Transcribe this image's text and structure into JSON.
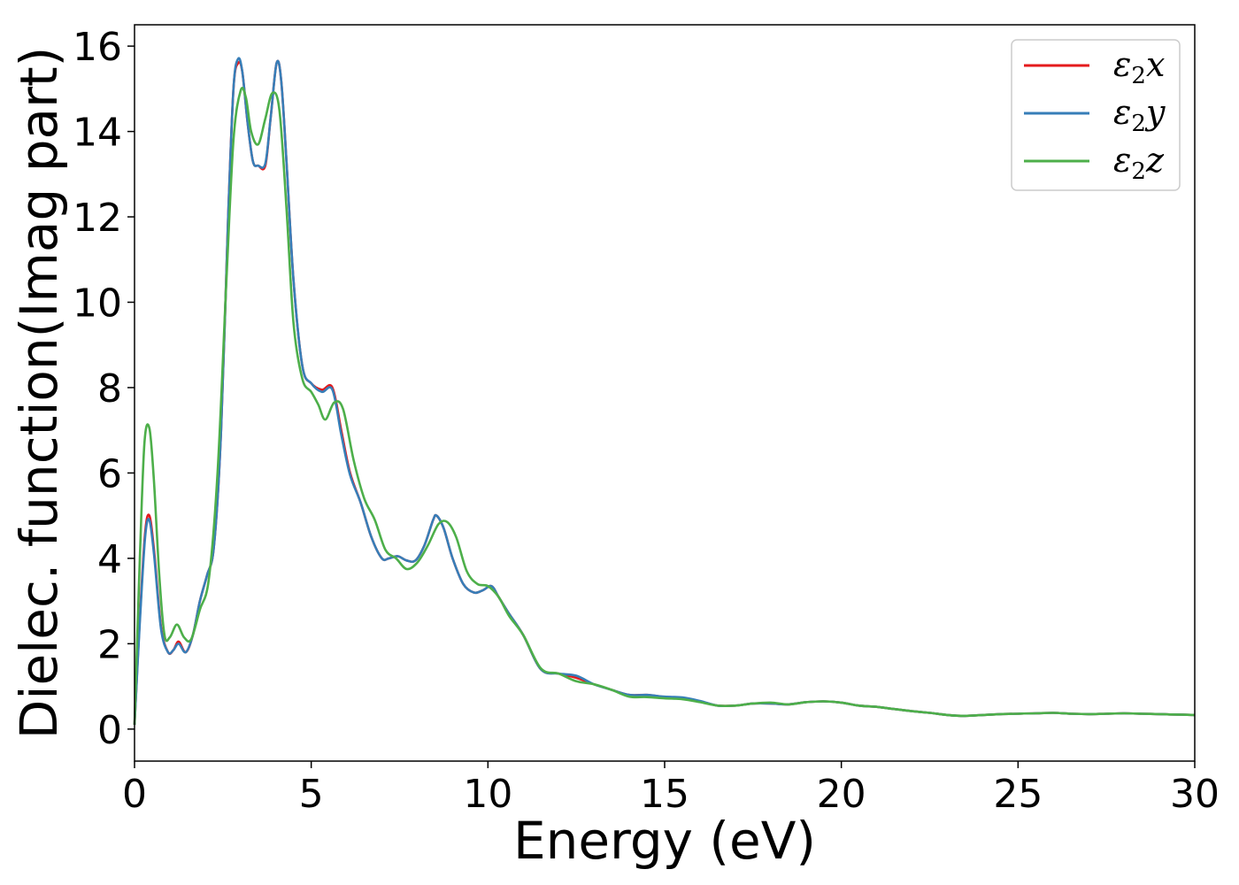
{
  "chart_data": {
    "type": "line",
    "xlabel": "Energy (eV)",
    "ylabel": "Dielec. function(Imag part)",
    "xlim": [
      0,
      30
    ],
    "ylim": [
      -0.75,
      16.5
    ],
    "xticks": [
      0,
      5,
      10,
      15,
      20,
      25,
      30
    ],
    "yticks": [
      0,
      2,
      4,
      6,
      8,
      10,
      12,
      14,
      16
    ],
    "grid": false,
    "legend_position": "top-right",
    "series": [
      {
        "name": "ε2x",
        "label_main": "ε",
        "label_sub": "2",
        "label_tail": "x",
        "color": "#e41a1c",
        "x": [
          0,
          0.15,
          0.3,
          0.42,
          0.55,
          0.75,
          0.95,
          1.1,
          1.25,
          1.45,
          1.65,
          1.85,
          2.05,
          2.25,
          2.45,
          2.65,
          2.8,
          2.93,
          3.05,
          3.2,
          3.35,
          3.5,
          3.7,
          3.85,
          4.02,
          4.15,
          4.3,
          4.5,
          4.75,
          5.0,
          5.3,
          5.6,
          5.85,
          6.1,
          6.4,
          6.7,
          7.0,
          7.2,
          7.45,
          7.7,
          7.95,
          8.2,
          8.45,
          8.55,
          8.75,
          9.0,
          9.3,
          9.6,
          9.85,
          10.1,
          10.3,
          10.6,
          11.0,
          11.5,
          12.0,
          12.5,
          13.0,
          13.5,
          14.0,
          14.5,
          15.0,
          15.5,
          16.0,
          16.5,
          17.0,
          17.5,
          18.0,
          18.5,
          19.0,
          19.5,
          20.0,
          20.5,
          21.0,
          21.5,
          22.0,
          22.5,
          23.0,
          23.5,
          24.0,
          24.5,
          25.0,
          25.5,
          26.0,
          26.5,
          27.0,
          27.5,
          28.0,
          28.5,
          29.0,
          29.5,
          30.0
        ],
        "y": [
          0.1,
          2.6,
          4.6,
          5.0,
          4.2,
          2.4,
          1.8,
          1.85,
          2.05,
          1.8,
          2.2,
          3.0,
          3.6,
          4.3,
          7.0,
          12.0,
          15.0,
          15.6,
          15.4,
          14.2,
          13.3,
          13.2,
          13.2,
          14.3,
          15.6,
          15.2,
          13.3,
          10.5,
          8.5,
          8.1,
          7.95,
          8.0,
          7.0,
          6.0,
          5.3,
          4.5,
          4.0,
          4.0,
          4.05,
          3.95,
          3.95,
          4.3,
          4.9,
          5.0,
          4.7,
          4.0,
          3.4,
          3.2,
          3.25,
          3.35,
          3.1,
          2.7,
          2.2,
          1.4,
          1.3,
          1.2,
          1.05,
          0.92,
          0.8,
          0.8,
          0.75,
          0.72,
          0.65,
          0.55,
          0.55,
          0.6,
          0.6,
          0.58,
          0.63,
          0.65,
          0.62,
          0.55,
          0.52,
          0.47,
          0.42,
          0.38,
          0.33,
          0.31,
          0.33,
          0.35,
          0.36,
          0.37,
          0.38,
          0.36,
          0.35,
          0.36,
          0.37,
          0.36,
          0.35,
          0.34,
          0.33
        ]
      },
      {
        "name": "ε2y",
        "label_main": "ε",
        "label_sub": "2",
        "label_tail": "y",
        "color": "#377eb8",
        "x": [
          0,
          0.15,
          0.3,
          0.42,
          0.55,
          0.75,
          0.95,
          1.1,
          1.25,
          1.45,
          1.65,
          1.85,
          2.05,
          2.25,
          2.45,
          2.65,
          2.8,
          2.93,
          3.05,
          3.2,
          3.35,
          3.5,
          3.7,
          3.85,
          4.02,
          4.15,
          4.3,
          4.5,
          4.75,
          5.0,
          5.3,
          5.6,
          5.85,
          6.1,
          6.4,
          6.7,
          7.0,
          7.2,
          7.45,
          7.7,
          7.95,
          8.2,
          8.45,
          8.55,
          8.75,
          9.0,
          9.3,
          9.6,
          9.85,
          10.1,
          10.3,
          10.6,
          11.0,
          11.5,
          12.0,
          12.5,
          13.0,
          13.5,
          14.0,
          14.5,
          15.0,
          15.5,
          16.0,
          16.5,
          17.0,
          17.5,
          18.0,
          18.5,
          19.0,
          19.5,
          20.0,
          20.5,
          21.0,
          21.5,
          22.0,
          22.5,
          23.0,
          23.5,
          24.0,
          24.5,
          25.0,
          25.5,
          26.0,
          26.5,
          27.0,
          27.5,
          28.0,
          28.5,
          29.0,
          29.5,
          30.0
        ],
        "y": [
          0.1,
          2.5,
          4.5,
          4.9,
          4.1,
          2.35,
          1.8,
          1.85,
          2.0,
          1.8,
          2.2,
          3.0,
          3.6,
          4.3,
          7.0,
          12.0,
          15.0,
          15.7,
          15.4,
          14.2,
          13.3,
          13.2,
          13.25,
          14.3,
          15.6,
          15.2,
          13.3,
          10.5,
          8.5,
          8.1,
          7.9,
          7.95,
          6.9,
          5.95,
          5.3,
          4.5,
          4.0,
          4.0,
          4.05,
          3.95,
          3.95,
          4.3,
          4.9,
          5.0,
          4.7,
          4.0,
          3.4,
          3.2,
          3.25,
          3.35,
          3.1,
          2.7,
          2.2,
          1.4,
          1.3,
          1.25,
          1.05,
          0.92,
          0.8,
          0.8,
          0.76,
          0.74,
          0.66,
          0.55,
          0.55,
          0.6,
          0.6,
          0.58,
          0.63,
          0.65,
          0.62,
          0.55,
          0.52,
          0.47,
          0.42,
          0.38,
          0.33,
          0.31,
          0.33,
          0.35,
          0.36,
          0.37,
          0.38,
          0.36,
          0.35,
          0.36,
          0.37,
          0.36,
          0.35,
          0.34,
          0.33
        ]
      },
      {
        "name": "ε2z",
        "label_main": "ε",
        "label_sub": "2",
        "label_tail": "z",
        "color": "#4daf4a",
        "x": [
          0,
          0.15,
          0.28,
          0.42,
          0.55,
          0.7,
          0.85,
          1.0,
          1.2,
          1.4,
          1.6,
          1.85,
          2.1,
          2.35,
          2.6,
          2.8,
          3.0,
          3.15,
          3.3,
          3.5,
          3.7,
          3.9,
          4.1,
          4.3,
          4.5,
          4.75,
          5.0,
          5.2,
          5.4,
          5.65,
          5.9,
          6.2,
          6.5,
          6.8,
          7.1,
          7.4,
          7.7,
          8.0,
          8.3,
          8.6,
          8.85,
          9.1,
          9.4,
          9.7,
          10.0,
          10.3,
          10.6,
          11.0,
          11.5,
          12.0,
          12.5,
          13.0,
          13.5,
          14.0,
          14.5,
          15.0,
          15.5,
          16.0,
          16.5,
          17.0,
          17.5,
          18.0,
          18.5,
          19.0,
          19.5,
          20.0,
          20.5,
          21.0,
          21.5,
          22.0,
          22.5,
          23.0,
          23.5,
          24.0,
          24.5,
          25.0,
          25.5,
          26.0,
          26.5,
          27.0,
          27.5,
          28.0,
          28.5,
          29.0,
          29.5,
          30.0
        ],
        "y": [
          0.1,
          4.0,
          6.7,
          7.05,
          5.8,
          3.6,
          2.2,
          2.15,
          2.45,
          2.15,
          2.1,
          2.8,
          3.5,
          6.0,
          10.5,
          13.8,
          14.95,
          14.8,
          14.0,
          13.7,
          14.3,
          14.9,
          14.5,
          12.2,
          9.5,
          8.2,
          7.9,
          7.6,
          7.25,
          7.65,
          7.5,
          6.3,
          5.4,
          4.9,
          4.2,
          4.0,
          3.75,
          3.9,
          4.3,
          4.8,
          4.85,
          4.5,
          3.7,
          3.4,
          3.35,
          3.1,
          2.65,
          2.2,
          1.42,
          1.3,
          1.12,
          1.05,
          0.92,
          0.76,
          0.75,
          0.72,
          0.7,
          0.63,
          0.55,
          0.55,
          0.6,
          0.62,
          0.58,
          0.63,
          0.65,
          0.62,
          0.55,
          0.52,
          0.47,
          0.42,
          0.38,
          0.33,
          0.31,
          0.33,
          0.35,
          0.36,
          0.37,
          0.38,
          0.36,
          0.35,
          0.36,
          0.37,
          0.36,
          0.35,
          0.34,
          0.33
        ]
      }
    ]
  }
}
